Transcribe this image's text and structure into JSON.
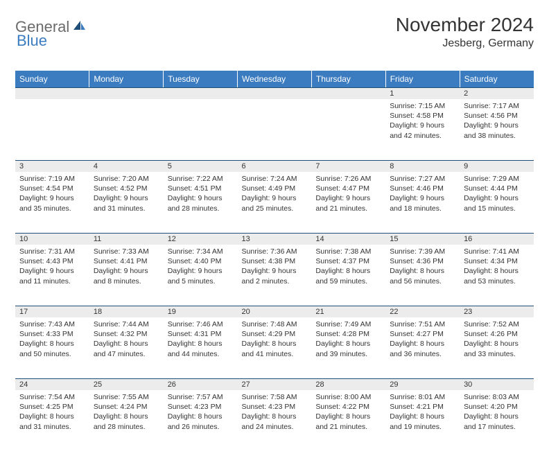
{
  "logo": {
    "text1": "General",
    "text2": "Blue"
  },
  "title": "November 2024",
  "location": "Jesberg, Germany",
  "colors": {
    "header_bg": "#3b7bbf",
    "header_text": "#ffffff",
    "daynum_bg": "#ececec",
    "border": "#1f4e79",
    "text": "#333333",
    "logo_gray": "#6b6b6b",
    "logo_blue": "#3b7bbf"
  },
  "weekdays": [
    "Sunday",
    "Monday",
    "Tuesday",
    "Wednesday",
    "Thursday",
    "Friday",
    "Saturday"
  ],
  "weeks": [
    [
      null,
      null,
      null,
      null,
      null,
      {
        "n": "1",
        "sr": "7:15 AM",
        "ss": "4:58 PM",
        "dl": "9 hours and 42 minutes."
      },
      {
        "n": "2",
        "sr": "7:17 AM",
        "ss": "4:56 PM",
        "dl": "9 hours and 38 minutes."
      }
    ],
    [
      {
        "n": "3",
        "sr": "7:19 AM",
        "ss": "4:54 PM",
        "dl": "9 hours and 35 minutes."
      },
      {
        "n": "4",
        "sr": "7:20 AM",
        "ss": "4:52 PM",
        "dl": "9 hours and 31 minutes."
      },
      {
        "n": "5",
        "sr": "7:22 AM",
        "ss": "4:51 PM",
        "dl": "9 hours and 28 minutes."
      },
      {
        "n": "6",
        "sr": "7:24 AM",
        "ss": "4:49 PM",
        "dl": "9 hours and 25 minutes."
      },
      {
        "n": "7",
        "sr": "7:26 AM",
        "ss": "4:47 PM",
        "dl": "9 hours and 21 minutes."
      },
      {
        "n": "8",
        "sr": "7:27 AM",
        "ss": "4:46 PM",
        "dl": "9 hours and 18 minutes."
      },
      {
        "n": "9",
        "sr": "7:29 AM",
        "ss": "4:44 PM",
        "dl": "9 hours and 15 minutes."
      }
    ],
    [
      {
        "n": "10",
        "sr": "7:31 AM",
        "ss": "4:43 PM",
        "dl": "9 hours and 11 minutes."
      },
      {
        "n": "11",
        "sr": "7:33 AM",
        "ss": "4:41 PM",
        "dl": "9 hours and 8 minutes."
      },
      {
        "n": "12",
        "sr": "7:34 AM",
        "ss": "4:40 PM",
        "dl": "9 hours and 5 minutes."
      },
      {
        "n": "13",
        "sr": "7:36 AM",
        "ss": "4:38 PM",
        "dl": "9 hours and 2 minutes."
      },
      {
        "n": "14",
        "sr": "7:38 AM",
        "ss": "4:37 PM",
        "dl": "8 hours and 59 minutes."
      },
      {
        "n": "15",
        "sr": "7:39 AM",
        "ss": "4:36 PM",
        "dl": "8 hours and 56 minutes."
      },
      {
        "n": "16",
        "sr": "7:41 AM",
        "ss": "4:34 PM",
        "dl": "8 hours and 53 minutes."
      }
    ],
    [
      {
        "n": "17",
        "sr": "7:43 AM",
        "ss": "4:33 PM",
        "dl": "8 hours and 50 minutes."
      },
      {
        "n": "18",
        "sr": "7:44 AM",
        "ss": "4:32 PM",
        "dl": "8 hours and 47 minutes."
      },
      {
        "n": "19",
        "sr": "7:46 AM",
        "ss": "4:31 PM",
        "dl": "8 hours and 44 minutes."
      },
      {
        "n": "20",
        "sr": "7:48 AM",
        "ss": "4:29 PM",
        "dl": "8 hours and 41 minutes."
      },
      {
        "n": "21",
        "sr": "7:49 AM",
        "ss": "4:28 PM",
        "dl": "8 hours and 39 minutes."
      },
      {
        "n": "22",
        "sr": "7:51 AM",
        "ss": "4:27 PM",
        "dl": "8 hours and 36 minutes."
      },
      {
        "n": "23",
        "sr": "7:52 AM",
        "ss": "4:26 PM",
        "dl": "8 hours and 33 minutes."
      }
    ],
    [
      {
        "n": "24",
        "sr": "7:54 AM",
        "ss": "4:25 PM",
        "dl": "8 hours and 31 minutes."
      },
      {
        "n": "25",
        "sr": "7:55 AM",
        "ss": "4:24 PM",
        "dl": "8 hours and 28 minutes."
      },
      {
        "n": "26",
        "sr": "7:57 AM",
        "ss": "4:23 PM",
        "dl": "8 hours and 26 minutes."
      },
      {
        "n": "27",
        "sr": "7:58 AM",
        "ss": "4:23 PM",
        "dl": "8 hours and 24 minutes."
      },
      {
        "n": "28",
        "sr": "8:00 AM",
        "ss": "4:22 PM",
        "dl": "8 hours and 21 minutes."
      },
      {
        "n": "29",
        "sr": "8:01 AM",
        "ss": "4:21 PM",
        "dl": "8 hours and 19 minutes."
      },
      {
        "n": "30",
        "sr": "8:03 AM",
        "ss": "4:20 PM",
        "dl": "8 hours and 17 minutes."
      }
    ]
  ],
  "labels": {
    "sunrise": "Sunrise:",
    "sunset": "Sunset:",
    "daylight": "Daylight:"
  }
}
